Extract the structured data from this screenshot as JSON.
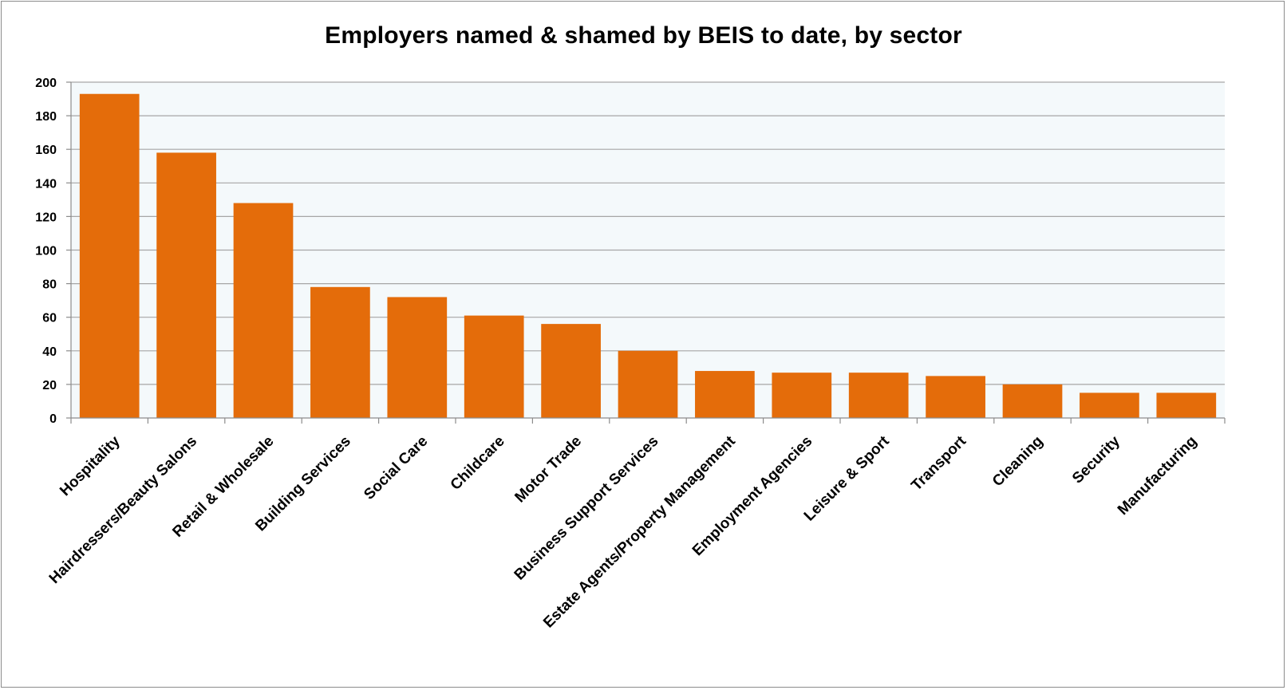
{
  "chart_data": {
    "type": "bar",
    "title": "Employers named & shamed by BEIS to date, by sector",
    "xlabel": "",
    "ylabel": "",
    "ylim": [
      0,
      200
    ],
    "yticks": [
      0,
      20,
      40,
      60,
      80,
      100,
      120,
      140,
      160,
      180,
      200
    ],
    "grid": true,
    "legend": "none",
    "categories": [
      "Hospitality",
      "Hairdressers/Beauty Salons",
      "Retail & Wholesale",
      "Building Services",
      "Social Care",
      "Childcare",
      "Motor Trade",
      "Business Support Services",
      "Estate Agents/Property Management",
      "Employment Agencies",
      "Leisure & Sport",
      "Transport",
      "Cleaning",
      "Security",
      "Manufacturing"
    ],
    "values": [
      193,
      158,
      128,
      78,
      72,
      61,
      56,
      40,
      28,
      27,
      27,
      25,
      20,
      15,
      15
    ],
    "colors": {
      "bar": "#E46C0A",
      "plot_background": "#F4F9FB",
      "gridline": "#A6A6A6",
      "axis": "#8C8C8C"
    }
  }
}
